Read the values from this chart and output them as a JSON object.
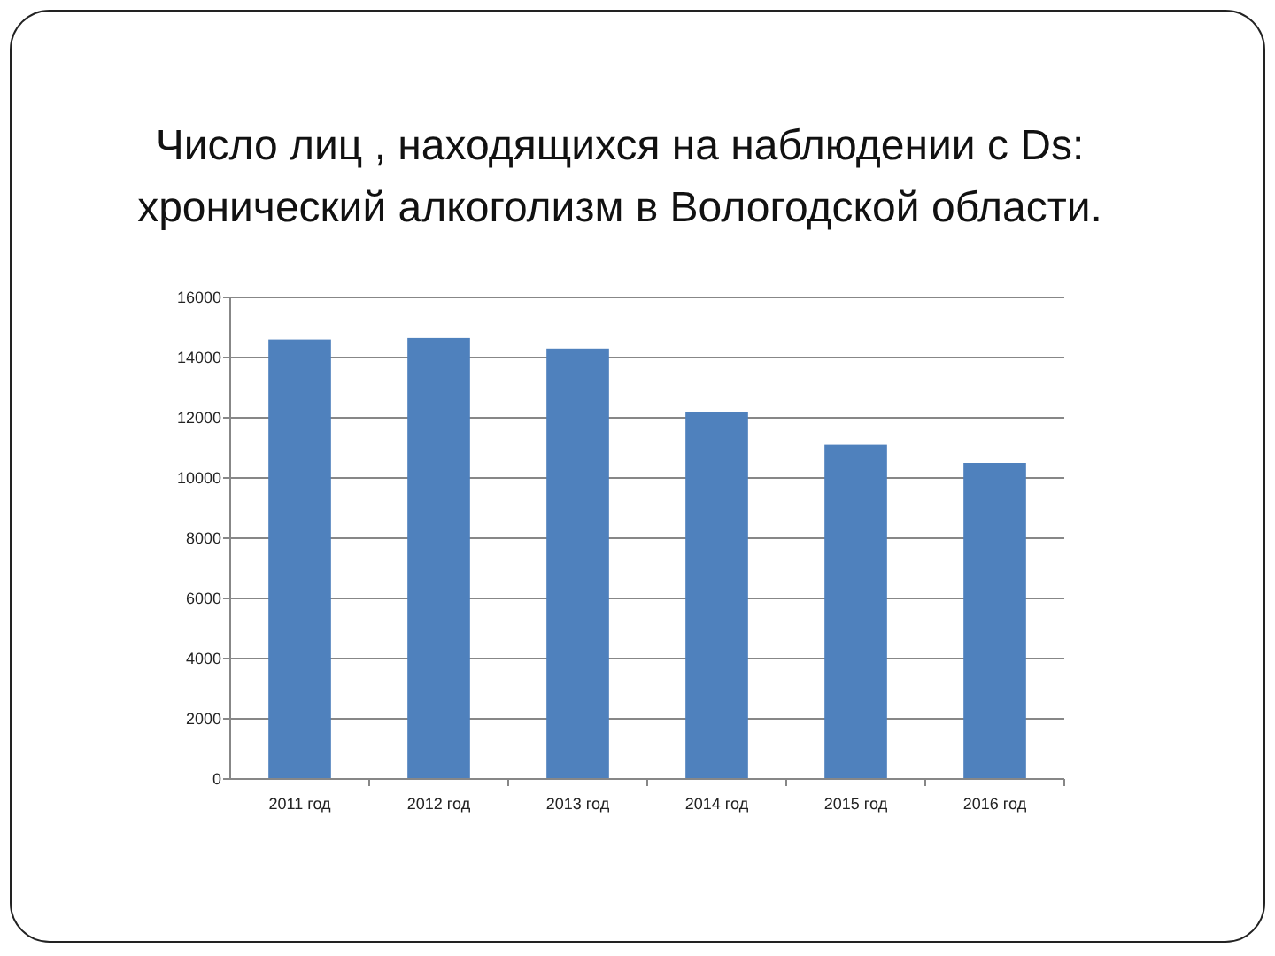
{
  "chart_data": {
    "type": "bar",
    "title": "Число лиц , находящихся на наблюдении с Ds:\nхронический алкоголизм в Вологодской области.",
    "categories": [
      "2011 год",
      "2012 год",
      "2013 год",
      "2014 год",
      "2015 год",
      "2016 год"
    ],
    "values": [
      14600,
      14650,
      14300,
      12200,
      11100,
      10500
    ],
    "color": "#4f81bd",
    "ylim": [
      0,
      16000
    ],
    "yticks": [
      0,
      2000,
      4000,
      6000,
      8000,
      10000,
      12000,
      14000,
      16000
    ],
    "grid": "y"
  }
}
